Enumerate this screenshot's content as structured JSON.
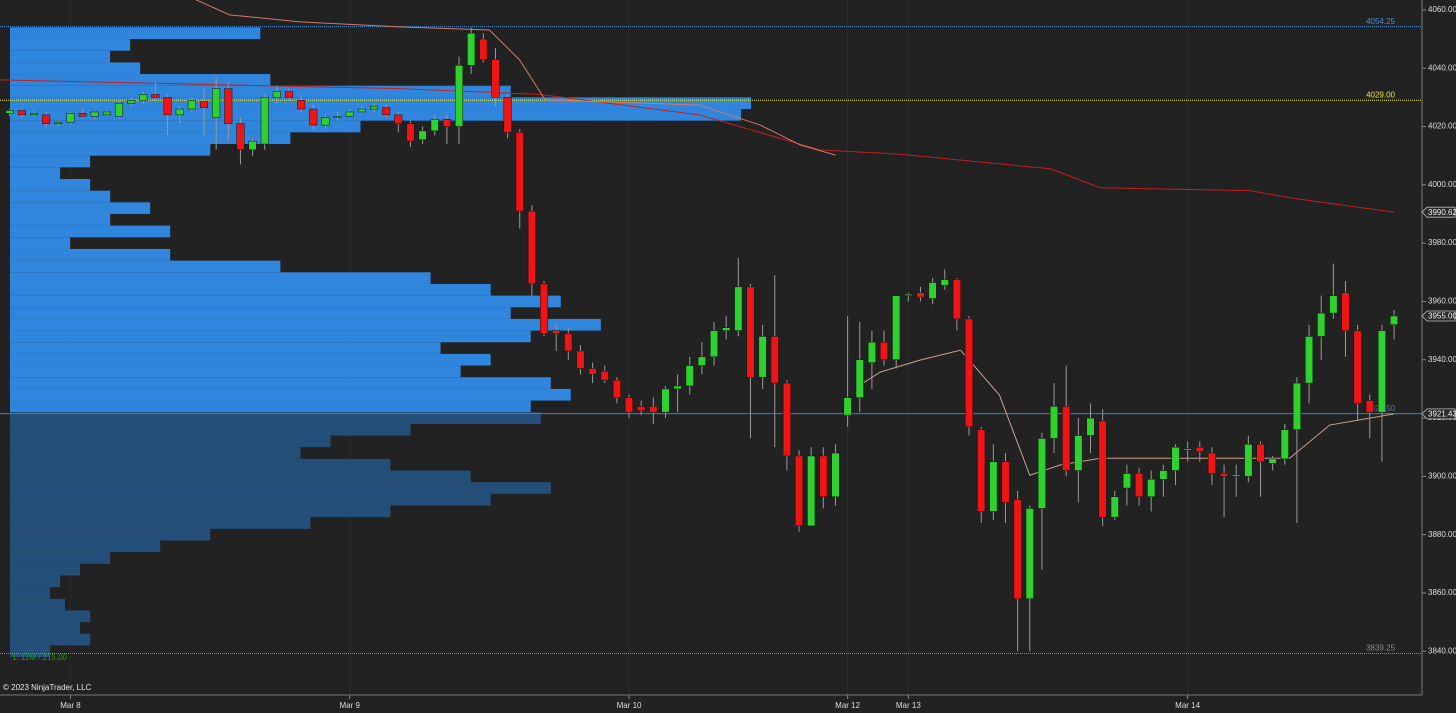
{
  "chart_data": {
    "type": "candlestick",
    "copyright": "© 2023 NinjaTrader, LLC",
    "profile_caption": "1: 11M / 215.00",
    "ylim": [
      3825,
      4063.4
    ],
    "yticks": [
      {
        "value": 4060,
        "label": "4060.00"
      },
      {
        "value": 4040,
        "label": "4040.00"
      },
      {
        "value": 4020,
        "label": "4020.00"
      },
      {
        "value": 4000,
        "label": "4000.00"
      },
      {
        "value": 3980,
        "label": "3980.00"
      },
      {
        "value": 3960,
        "label": "3960.00"
      },
      {
        "value": 3940,
        "label": "3940.00"
      },
      {
        "value": 3920,
        "label": "3920.00"
      },
      {
        "value": 3900,
        "label": "3900.00"
      },
      {
        "value": 3880,
        "label": "3880.00"
      },
      {
        "value": 3860,
        "label": "3860.00"
      },
      {
        "value": 3840,
        "label": "3840.00"
      }
    ],
    "xlim": [
      -0.8,
      116.3
    ],
    "xticks": [
      {
        "value": 5,
        "label": "Mar 8"
      },
      {
        "value": 28,
        "label": "Mar 9"
      },
      {
        "value": 51,
        "label": "Mar 10"
      },
      {
        "value": 69,
        "label": "Mar 12"
      },
      {
        "value": 74,
        "label": "Mar 13"
      },
      {
        "value": 97,
        "label": "Mar 14"
      }
    ],
    "up_color": "#2fd12f",
    "down_color": "#f01414",
    "wick_color": "#9a9a9a",
    "ohlc": [
      [
        4024.5,
        4026,
        4023.5,
        4025.5
      ],
      [
        4025.5,
        4026,
        4023,
        4024
      ],
      [
        4024,
        4025.5,
        4023.5,
        4024.5
      ],
      [
        4024,
        4025,
        4019.5,
        4021
      ],
      [
        4021,
        4022,
        4020,
        4021.5
      ],
      [
        4021.5,
        4025,
        4021,
        4024.5
      ],
      [
        4024.5,
        4026,
        4023,
        4023.5
      ],
      [
        4023.5,
        4025.5,
        4022.5,
        4025
      ],
      [
        4024,
        4025.5,
        4023.5,
        4025
      ],
      [
        4023.5,
        4029,
        4023,
        4028
      ],
      [
        4028,
        4030,
        4027,
        4029
      ],
      [
        4029,
        4032,
        4028,
        4031
      ],
      [
        4031,
        4035,
        4029,
        4030
      ],
      [
        4030,
        4031,
        4017,
        4024
      ],
      [
        4024,
        4027,
        4021,
        4026
      ],
      [
        4026,
        4030,
        4025,
        4029
      ],
      [
        4028.5,
        4033,
        4017,
        4026.5
      ],
      [
        4023,
        4037,
        4012,
        4033
      ],
      [
        4033,
        4035,
        4015,
        4021
      ],
      [
        4021,
        4023,
        4007,
        4012
      ],
      [
        4012,
        4016,
        4010,
        4015
      ],
      [
        4014,
        4031,
        4012,
        4030
      ],
      [
        4030,
        4034,
        4028,
        4032
      ],
      [
        4032,
        4033,
        4029,
        4030
      ],
      [
        4029,
        4031,
        4025,
        4026
      ],
      [
        4026,
        4028,
        4019,
        4020.5
      ],
      [
        4020.5,
        4024,
        4019,
        4023
      ],
      [
        4023,
        4025,
        4022,
        4023.5
      ],
      [
        4023.5,
        4026,
        4023,
        4025
      ],
      [
        4025,
        4027,
        4024,
        4026
      ],
      [
        4026,
        4028,
        4025,
        4027
      ],
      [
        4026.5,
        4027.5,
        4023,
        4024
      ],
      [
        4024,
        4025,
        4018,
        4021
      ],
      [
        4021,
        4022,
        4013,
        4015
      ],
      [
        4015.5,
        4020,
        4014,
        4018.5
      ],
      [
        4018.5,
        4024,
        4017,
        4022.5
      ],
      [
        4022.5,
        4024,
        4014,
        4020
      ],
      [
        4020,
        4044,
        4014,
        4041
      ],
      [
        4041,
        4054,
        4038,
        4052
      ],
      [
        4050,
        4052,
        4042,
        4043
      ],
      [
        4043,
        4047,
        4027,
        4030
      ],
      [
        4030,
        4031,
        4016,
        4018
      ],
      [
        4018,
        4019,
        3985,
        3991
      ],
      [
        3991,
        3993,
        3962,
        3966
      ],
      [
        3966,
        3967,
        3948,
        3949
      ],
      [
        3950,
        3952,
        3943,
        3949
      ],
      [
        3949,
        3951,
        3940,
        3943
      ],
      [
        3943,
        3945,
        3935,
        3937
      ],
      [
        3937,
        3939,
        3932,
        3935
      ],
      [
        3936,
        3938,
        3932,
        3933
      ],
      [
        3933,
        3934,
        3925,
        3927
      ],
      [
        3927,
        3928,
        3920,
        3922
      ],
      [
        3924,
        3926,
        3921,
        3922.5
      ],
      [
        3924,
        3927,
        3918,
        3922
      ],
      [
        3922,
        3931,
        3920,
        3930
      ],
      [
        3930,
        3935,
        3922,
        3931
      ],
      [
        3931,
        3941,
        3928,
        3938
      ],
      [
        3938,
        3946,
        3935,
        3941
      ],
      [
        3941,
        3953,
        3938,
        3950
      ],
      [
        3950,
        3955,
        3947,
        3951
      ],
      [
        3950,
        3975,
        3948,
        3965
      ],
      [
        3965,
        3966,
        3913,
        3934
      ],
      [
        3934,
        3952,
        3930,
        3948
      ],
      [
        3948,
        3969,
        3910,
        3932
      ],
      [
        3932,
        3933,
        3902,
        3907
      ],
      [
        3907,
        3909,
        3881,
        3883
      ],
      [
        3883,
        3910,
        3883,
        3907
      ],
      [
        3907,
        3910,
        3889,
        3893
      ],
      [
        3893,
        3911,
        3890,
        3908
      ],
      [
        3921,
        3955,
        3917,
        3927
      ],
      [
        3927,
        3953,
        3922,
        3940
      ],
      [
        3939,
        3950,
        3930,
        3946
      ],
      [
        3946,
        3950,
        3938,
        3940
      ],
      [
        3940,
        3962,
        3937,
        3962
      ],
      [
        3962,
        3963,
        3960,
        3962.5
      ],
      [
        3963,
        3965,
        3960,
        3961.5
      ],
      [
        3961,
        3968,
        3959,
        3966.5
      ],
      [
        3965.5,
        3971,
        3964,
        3967.5
      ],
      [
        3967.5,
        3968,
        3950,
        3954
      ],
      [
        3954,
        3955,
        3914,
        3917
      ],
      [
        3916,
        3917,
        3884,
        3888
      ],
      [
        3888,
        3911,
        3885,
        3905
      ],
      [
        3905,
        3908,
        3884,
        3891
      ],
      [
        3892,
        3895,
        3840,
        3858
      ],
      [
        3858,
        3890,
        3840,
        3889
      ],
      [
        3889,
        3915,
        3868,
        3913
      ],
      [
        3913,
        3932,
        3908,
        3924
      ],
      [
        3924,
        3938,
        3900,
        3902
      ],
      [
        3902,
        3920,
        3891,
        3914
      ],
      [
        3914,
        3925,
        3908,
        3920
      ],
      [
        3919,
        3923,
        3883,
        3886
      ],
      [
        3886,
        3895,
        3885,
        3893
      ],
      [
        3896,
        3904,
        3890,
        3901
      ],
      [
        3901,
        3903,
        3890,
        3893
      ],
      [
        3893,
        3902,
        3888,
        3899
      ],
      [
        3899,
        3904,
        3893,
        3902
      ],
      [
        3902,
        3911,
        3897,
        3910
      ],
      [
        3909,
        3912,
        3905,
        3909.5
      ],
      [
        3910,
        3912,
        3905,
        3908.5
      ],
      [
        3908,
        3910,
        3897,
        3901
      ],
      [
        3901,
        3904,
        3886,
        3900
      ],
      [
        3900,
        3904,
        3893,
        3900.5
      ],
      [
        3900,
        3914,
        3898,
        3911
      ],
      [
        3911,
        3912,
        3893,
        3905
      ],
      [
        3904.5,
        3907,
        3902,
        3906
      ],
      [
        3906,
        3918,
        3904,
        3916
      ],
      [
        3916,
        3934,
        3884,
        3932
      ],
      [
        3932,
        3952,
        3925,
        3948
      ],
      [
        3948,
        3962,
        3940,
        3956
      ],
      [
        3956,
        3973,
        3954,
        3962
      ],
      [
        3963,
        3967,
        3941,
        3950
      ],
      [
        3950,
        3952,
        3919,
        3925
      ],
      [
        3926,
        3928,
        3913,
        3922
      ],
      [
        3922,
        3952,
        3905,
        3950
      ],
      [
        3952,
        3957,
        3947,
        3955
      ]
    ],
    "lines": [
      {
        "color": "#c0201e",
        "x": [
          -0.8,
          15.6,
          32.1,
          43.7,
          56.8,
          66.7,
          73.3,
          85.7,
          89.8,
          102.1,
          106.3,
          114
        ],
        "values": [
          4036,
          4034.5,
          4033,
          4031,
          4024,
          4012,
          4010.5,
          4005.5,
          3999,
          3998,
          3995,
          3990.62
        ]
      },
      {
        "color": "#d27a68",
        "x": [
          14,
          18.1,
          23.9,
          32.1,
          39.5,
          42,
          44.1,
          56.8,
          61.8,
          65.1,
          68
        ],
        "values": [
          4066,
          4058.3,
          4055.9,
          4054.2,
          4053.1,
          4042.8,
          4029.1,
          4027.4,
          4020.5,
          4013.7,
          4010.2
        ]
      },
      {
        "color": "#c9a08e",
        "x": [
          70,
          71.7,
          75,
          78.3,
          81.5,
          84,
          86.5,
          89.8,
          105.4,
          108.7,
          114
        ],
        "values": [
          3931.3,
          3935.8,
          3939.9,
          3943.3,
          3927.9,
          3900.4,
          3903.9,
          3906.2,
          3906.2,
          3917.6,
          3921.43
        ]
      }
    ],
    "levels": [
      {
        "value": 4054.25,
        "label": "4054.25",
        "color": "#4a8fd8",
        "dash": true
      },
      {
        "value": 4029,
        "label": "4029.00",
        "color": "#e8e82a",
        "dash": true
      },
      {
        "value": 3921.5,
        "label": "3921.50",
        "color": "#3b7fc9",
        "dash": false
      },
      {
        "value": 3839.25,
        "label": "3839.25",
        "color": "#8a8a8a",
        "dash": true
      }
    ],
    "flags": [
      {
        "value": 3990.62,
        "label": "3990.62"
      },
      {
        "value": 3955,
        "label": "3955.00"
      },
      {
        "value": 3921.43,
        "label": "3921.43"
      }
    ],
    "profile_xlim": [
      0,
      1410
    ],
    "profile_upper": {
      "type": "histogram",
      "color": "#2f86dc",
      "bins": [
        4054,
        4050,
        4046,
        4042,
        4038,
        4034,
        4030,
        4026,
        4022,
        4018,
        4014,
        4010,
        4006,
        4002,
        3998,
        3994,
        3990,
        3986,
        3982,
        3978,
        3974,
        3970,
        3966,
        3962,
        3958,
        3954,
        3950,
        3946,
        3942,
        3938,
        3934,
        3930,
        3926,
        3922
      ],
      "values": [
        250,
        120,
        100,
        130,
        260,
        500,
        740,
        730,
        350,
        280,
        200,
        80,
        50,
        80,
        100,
        140,
        100,
        160,
        60,
        160,
        270,
        420,
        480,
        550,
        500,
        590,
        520,
        430,
        480,
        450,
        540,
        560,
        520
      ]
    },
    "profile_lower": {
      "type": "histogram",
      "color": "#244f78",
      "bins": [
        3922,
        3918,
        3914,
        3910,
        3906,
        3902,
        3898,
        3894,
        3890,
        3886,
        3882,
        3878,
        3874,
        3870,
        3866,
        3862,
        3858,
        3854,
        3850,
        3846,
        3842,
        3838
      ],
      "values": [
        530,
        400,
        320,
        290,
        380,
        460,
        540,
        480,
        380,
        300,
        200,
        150,
        100,
        70,
        50,
        40,
        55,
        80,
        70,
        80,
        40
      ]
    }
  }
}
